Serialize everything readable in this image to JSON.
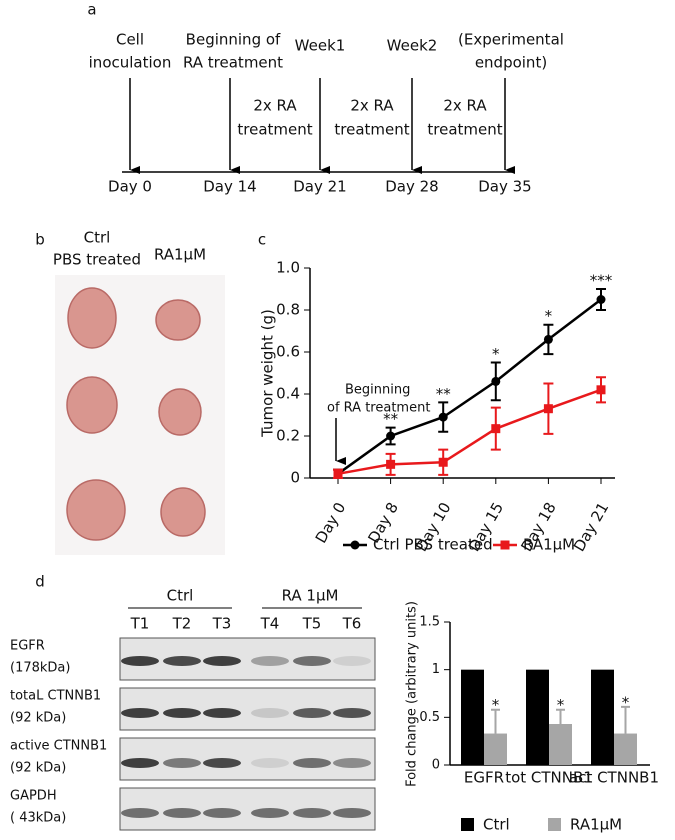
{
  "timeline": {
    "panel_label": "a",
    "days": [
      "Day 0",
      "Day 14",
      "Day 21",
      "Day 28",
      "Day 35"
    ],
    "events": [
      [
        "Cell",
        "inoculation"
      ],
      [
        "Beginning of",
        "RA treatment"
      ],
      [
        "Week1"
      ],
      [
        "Week2"
      ],
      [
        "(Experimental",
        "endpoint)"
      ]
    ],
    "intervals": [
      [
        "2x RA",
        "treatment"
      ],
      [
        "2x RA",
        "treatment"
      ],
      [
        "2x RA",
        "treatment"
      ]
    ]
  },
  "photo": {
    "panel_label": "b",
    "groups": [
      [
        "Ctrl",
        "PBS treated"
      ],
      [
        "RA1μM"
      ]
    ]
  },
  "blot": {
    "panel_label": "d",
    "groups": [
      "Ctrl",
      "RA 1μM"
    ],
    "lanes": [
      "T1",
      "T2",
      "T3",
      "T4",
      "T5",
      "T6"
    ],
    "rows": [
      [
        "EGFR",
        "(178kDa)"
      ],
      [
        "totaL CTNNB1",
        "(92 kDa)"
      ],
      [
        "active CTNNB1",
        "(92 kDa)"
      ],
      [
        "GAPDH",
        "( 43kDa)"
      ]
    ]
  },
  "chart_data": [
    {
      "type": "line",
      "panel_label": "c",
      "y_label": "Tumor weight (g)",
      "categories": [
        "Day 0",
        "Day 8",
        "Day 10",
        "Day 15",
        "Day 18",
        "Day 21"
      ],
      "series": [
        {
          "name": "Ctrl PBS treated",
          "color": "#000000",
          "values": [
            0.02,
            0.2,
            0.29,
            0.46,
            0.66,
            0.85
          ],
          "errors": [
            0.02,
            0.04,
            0.07,
            0.09,
            0.07,
            0.05
          ]
        },
        {
          "name": "RA1μM",
          "color": "#e8191c",
          "values": [
            0.02,
            0.065,
            0.075,
            0.235,
            0.33,
            0.42
          ],
          "errors": [
            0.02,
            0.05,
            0.06,
            0.1,
            0.12,
            0.06
          ]
        }
      ],
      "significance": [
        null,
        "**",
        "**",
        "*",
        "*",
        "***"
      ],
      "annotation": [
        "Beginning",
        "of RA treatment"
      ],
      "ylim": [
        0,
        1
      ],
      "yticks": [
        0,
        0.2,
        0.4,
        0.6,
        0.8,
        {
          "value": 1,
          "label": "1.0"
        }
      ]
    },
    {
      "type": "bar",
      "y_label": "Fold change (arbitrary units)",
      "categories": [
        "EGFR",
        "tot CTNNB1",
        "act CTNNB1"
      ],
      "series": [
        {
          "name": "Ctrl",
          "color": "#000000",
          "values": [
            1,
            1,
            1
          ]
        },
        {
          "name": "RA1μM",
          "color": "#a6a6a6",
          "values": [
            0.33,
            0.43,
            0.33
          ],
          "errors": [
            0.25,
            0.15,
            0.28
          ]
        }
      ],
      "significance": [
        "*",
        "*",
        "*"
      ],
      "ylim": [
        0,
        1.5
      ],
      "yticks": [
        0,
        0.5,
        1,
        1.5
      ]
    }
  ]
}
